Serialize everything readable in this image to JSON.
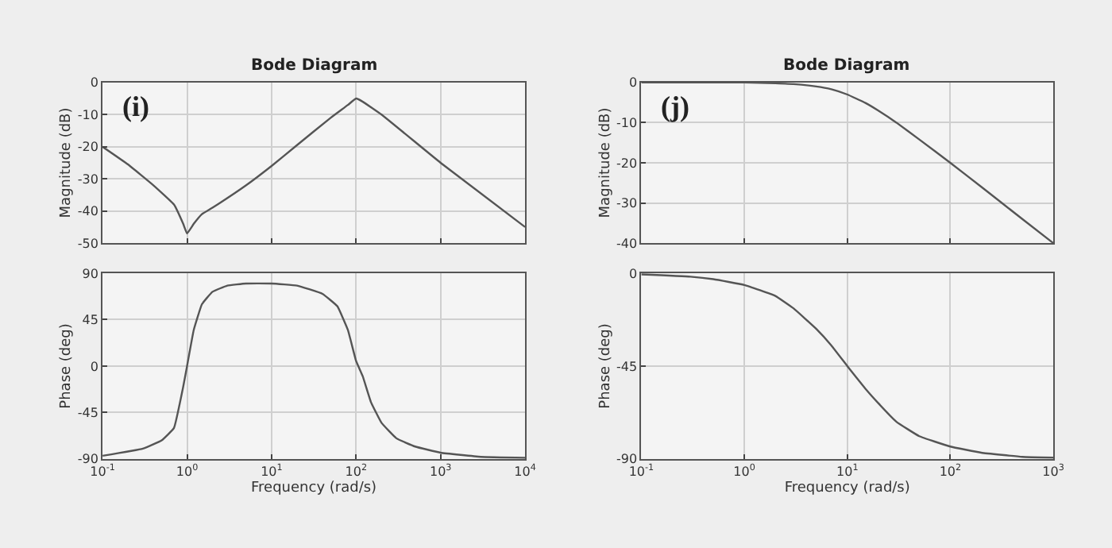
{
  "chart_data": [
    {
      "type": "line",
      "title": "Bode Diagram",
      "ylabel": "Magnitude (dB)",
      "annotations": [
        "(i)"
      ],
      "log": "x",
      "grid": true,
      "tick_labels": "y",
      "x": [
        0.1,
        0.2,
        0.4,
        0.7,
        0.9,
        1,
        1.2,
        1.5,
        2,
        5,
        10,
        20,
        50,
        80,
        100,
        120,
        200,
        1000,
        10000
      ],
      "series": [
        {
          "color": "#555555",
          "values": [
            -20,
            -25.5,
            -32,
            -38,
            -44,
            -47,
            -44,
            -41,
            -39,
            -32,
            -26,
            -19.5,
            -11,
            -7,
            -5,
            -6,
            -10,
            -25,
            -45
          ]
        }
      ],
      "xlim": [
        0.1,
        10000
      ],
      "ylim": [
        -50,
        0
      ],
      "yticks": [
        0,
        -10,
        -20,
        -30,
        -40,
        -50
      ]
    },
    {
      "type": "line",
      "ylabel": "Phase (deg)",
      "xlabel": "Frequency (rad/s)",
      "log": "x",
      "grid": true,
      "x": [
        0.1,
        0.3,
        0.5,
        0.7,
        0.9,
        1,
        1.2,
        1.5,
        2,
        3,
        5,
        10,
        20,
        40,
        60,
        80,
        100,
        120,
        150,
        200,
        300,
        500,
        1000,
        3000,
        10000
      ],
      "series": [
        {
          "color": "#555555",
          "values": [
            -87,
            -80,
            -72,
            -60,
            -20,
            0,
            35,
            60,
            72,
            78,
            80,
            80,
            78,
            70,
            58,
            35,
            5,
            -10,
            -35,
            -55,
            -70,
            -78,
            -84,
            -88,
            -89
          ]
        }
      ],
      "xlim": [
        0.1,
        10000
      ],
      "ylim": [
        -90,
        90
      ],
      "yticks": [
        90,
        45,
        0,
        -45,
        -90
      ],
      "xticks": [
        {
          "value": 0.1,
          "label": "10$^{-1}$"
        },
        {
          "value": 1,
          "label": "10$^{0}$"
        },
        {
          "value": 10,
          "label": "10$^{1}$"
        },
        {
          "value": 100,
          "label": "10$^{2}$"
        },
        {
          "value": 1000,
          "label": "10$^{3}$"
        },
        {
          "value": 10000,
          "label": "10$^{4}$"
        }
      ]
    },
    {
      "type": "line",
      "title": "Bode Diagram",
      "ylabel": "Magnitude (dB)",
      "annotations": [
        "(j)"
      ],
      "log": "x",
      "grid": true,
      "tick_labels": "y",
      "x": [
        0.1,
        0.5,
        1,
        2,
        3,
        5,
        7,
        10,
        15,
        20,
        30,
        50,
        100,
        200,
        500,
        1000
      ],
      "series": [
        {
          "color": "#555555",
          "values": [
            0,
            0,
            0,
            -0.2,
            -0.4,
            -1,
            -1.7,
            -3,
            -5.1,
            -7,
            -10,
            -14.2,
            -20,
            -26,
            -34,
            -40
          ]
        }
      ],
      "xlim": [
        0.1,
        1000
      ],
      "ylim": [
        -40,
        0
      ],
      "yticks": [
        0,
        -10,
        -20,
        -30,
        -40
      ]
    },
    {
      "type": "line",
      "ylabel": "Phase (deg)",
      "xlabel": "Frequency (rad/s)",
      "log": "x",
      "grid": true,
      "x": [
        0.1,
        0.3,
        0.5,
        1,
        2,
        3,
        5,
        7,
        10,
        15,
        20,
        30,
        50,
        100,
        200,
        500,
        1000
      ],
      "series": [
        {
          "color": "#555555",
          "values": [
            -0.6,
            -1.7,
            -2.9,
            -5.7,
            -11,
            -17,
            -27,
            -35,
            -45,
            -56,
            -63,
            -72,
            -79,
            -84,
            -87,
            -89,
            -89.4
          ]
        }
      ],
      "xlim": [
        0.1,
        1000
      ],
      "ylim": [
        -90,
        0
      ],
      "yticks": [
        0,
        -45,
        -90
      ],
      "xticks": [
        {
          "value": 0.1,
          "label": "10$^{-1}$"
        },
        {
          "value": 1,
          "label": "10$^{0}$"
        },
        {
          "value": 10,
          "label": "10$^{1}$"
        },
        {
          "value": 100,
          "label": "10$^{2}$"
        },
        {
          "value": 1000,
          "label": "10$^{3}$"
        }
      ]
    }
  ]
}
